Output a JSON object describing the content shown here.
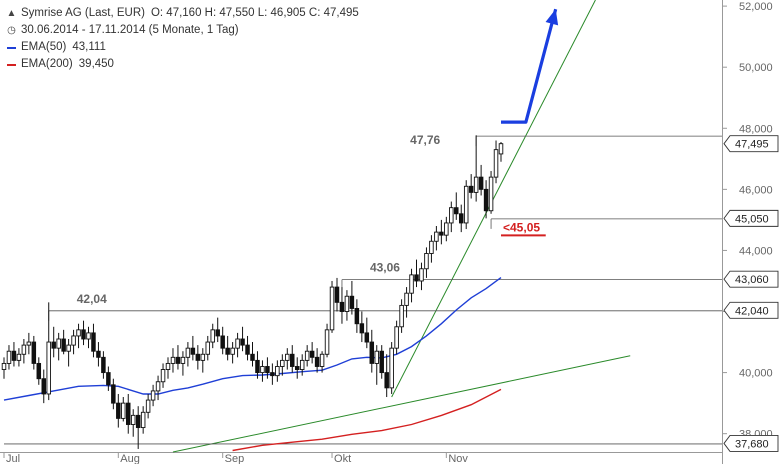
{
  "legend": {
    "title": "Symrise AG (Last, EUR)",
    "ohlc": "O: 47,160  H: 47,550  L: 46,905  C: 47,495",
    "range": "30.06.2014 - 17.11.2014 (5 Monate, 1 Tag)",
    "ema50_label": "EMA(50)",
    "ema50_value": "43,111",
    "ema200_label": "EMA(200)",
    "ema200_value": "39,450",
    "ema50_color": "#1f3fd6",
    "ema200_color": "#d42020"
  },
  "chart_data": {
    "type": "candlestick",
    "title": "Symrise AG (Last, EUR)",
    "ylim": [
      37.4,
      52.2
    ],
    "y_ticks": [
      "38,000",
      "40,000",
      "42,000",
      "44,000",
      "46,000",
      "48,000",
      "50,000",
      "52,000"
    ],
    "y_tick_values": [
      38,
      40,
      42,
      44,
      46,
      48,
      50,
      52
    ],
    "x_labels": [
      {
        "label": "Jul",
        "index": 0
      },
      {
        "label": "Aug",
        "index": 23
      },
      {
        "label": "Sep",
        "index": 44
      },
      {
        "label": "Okt",
        "index": 66
      },
      {
        "label": "Nov",
        "index": 89
      }
    ],
    "x_range": [
      0,
      126
    ],
    "candles": [
      [
        40.1,
        40.5,
        39.8,
        40.3
      ],
      [
        40.3,
        40.9,
        40.1,
        40.7
      ],
      [
        40.7,
        41.0,
        40.2,
        40.4
      ],
      [
        40.4,
        40.8,
        40.2,
        40.6
      ],
      [
        40.6,
        41.1,
        40.3,
        40.9
      ],
      [
        40.9,
        41.3,
        40.6,
        41.0
      ],
      [
        41.0,
        41.2,
        40.1,
        40.3
      ],
      [
        40.3,
        40.5,
        39.6,
        39.8
      ],
      [
        39.8,
        40.1,
        39.0,
        39.3
      ],
      [
        39.3,
        42.3,
        39.1,
        41.0
      ],
      [
        41.0,
        41.5,
        40.5,
        40.8
      ],
      [
        40.8,
        41.3,
        40.4,
        41.1
      ],
      [
        41.1,
        41.4,
        40.6,
        40.7
      ],
      [
        40.7,
        41.1,
        40.2,
        40.9
      ],
      [
        40.9,
        41.4,
        40.6,
        41.2
      ],
      [
        41.2,
        41.6,
        40.8,
        41.4
      ],
      [
        41.4,
        41.7,
        40.9,
        41.1
      ],
      [
        41.1,
        41.5,
        40.8,
        41.3
      ],
      [
        41.3,
        41.6,
        40.5,
        40.7
      ],
      [
        40.7,
        41.0,
        40.2,
        40.5
      ],
      [
        40.5,
        40.7,
        39.8,
        40.0
      ],
      [
        40.0,
        40.2,
        39.4,
        39.6
      ],
      [
        39.6,
        39.8,
        38.8,
        39.0
      ],
      [
        39.0,
        39.3,
        38.2,
        38.5
      ],
      [
        38.5,
        39.2,
        38.4,
        39.0
      ],
      [
        39.0,
        39.3,
        38.0,
        38.3
      ],
      [
        38.3,
        38.8,
        37.9,
        38.6
      ],
      [
        38.6,
        38.9,
        37.5,
        38.2
      ],
      [
        38.2,
        38.9,
        38.0,
        38.7
      ],
      [
        38.7,
        39.3,
        38.5,
        39.1
      ],
      [
        39.1,
        39.6,
        38.9,
        39.4
      ],
      [
        39.4,
        39.9,
        39.1,
        39.7
      ],
      [
        39.7,
        40.3,
        39.5,
        40.1
      ],
      [
        40.1,
        40.5,
        39.8,
        40.3
      ],
      [
        40.3,
        40.8,
        40.0,
        40.5
      ],
      [
        40.5,
        40.9,
        40.1,
        40.3
      ],
      [
        40.3,
        40.7,
        39.9,
        40.5
      ],
      [
        40.5,
        41.0,
        40.2,
        40.8
      ],
      [
        40.8,
        41.2,
        40.4,
        40.6
      ],
      [
        40.6,
        40.9,
        40.1,
        40.4
      ],
      [
        40.4,
        40.8,
        40.0,
        40.6
      ],
      [
        40.6,
        41.2,
        40.4,
        41.0
      ],
      [
        41.0,
        41.6,
        40.8,
        41.4
      ],
      [
        41.4,
        41.8,
        41.0,
        41.2
      ],
      [
        41.2,
        41.5,
        40.6,
        40.8
      ],
      [
        40.8,
        41.2,
        40.4,
        40.6
      ],
      [
        40.6,
        41.0,
        40.3,
        40.8
      ],
      [
        40.8,
        41.3,
        40.5,
        41.1
      ],
      [
        41.1,
        41.5,
        40.7,
        40.9
      ],
      [
        40.9,
        41.2,
        40.4,
        40.6
      ],
      [
        40.6,
        41.0,
        40.2,
        40.4
      ],
      [
        40.4,
        40.7,
        39.8,
        40.0
      ],
      [
        40.0,
        40.4,
        39.7,
        40.2
      ],
      [
        40.2,
        40.5,
        39.8,
        40.0
      ],
      [
        40.0,
        40.3,
        39.6,
        39.9
      ],
      [
        39.9,
        40.4,
        39.7,
        40.2
      ],
      [
        40.2,
        40.6,
        39.9,
        40.4
      ],
      [
        40.4,
        40.8,
        40.1,
        40.6
      ],
      [
        40.6,
        40.9,
        40.0,
        40.2
      ],
      [
        40.2,
        40.5,
        39.8,
        40.1
      ],
      [
        40.1,
        40.6,
        39.9,
        40.4
      ],
      [
        40.4,
        40.9,
        40.2,
        40.7
      ],
      [
        40.7,
        41.0,
        40.3,
        40.5
      ],
      [
        40.5,
        40.8,
        40.0,
        40.2
      ],
      [
        40.2,
        40.7,
        40.0,
        40.6
      ],
      [
        40.6,
        41.6,
        40.5,
        41.4
      ],
      [
        41.4,
        43.0,
        41.3,
        42.8
      ],
      [
        42.8,
        43.1,
        42.0,
        42.3
      ],
      [
        42.3,
        42.8,
        41.6,
        42.0
      ],
      [
        42.0,
        42.7,
        41.7,
        42.5
      ],
      [
        42.5,
        43.0,
        41.9,
        42.1
      ],
      [
        42.1,
        42.4,
        41.3,
        41.6
      ],
      [
        41.6,
        42.0,
        41.0,
        41.3
      ],
      [
        41.3,
        41.8,
        40.8,
        41.0
      ],
      [
        41.0,
        41.4,
        40.0,
        40.3
      ],
      [
        40.3,
        40.9,
        39.6,
        40.7
      ],
      [
        40.7,
        40.9,
        39.8,
        40.0
      ],
      [
        40.0,
        40.6,
        39.2,
        39.5
      ],
      [
        39.5,
        41.0,
        39.3,
        40.8
      ],
      [
        40.8,
        41.7,
        40.6,
        41.5
      ],
      [
        41.5,
        42.4,
        41.3,
        42.2
      ],
      [
        42.2,
        42.8,
        41.8,
        42.6
      ],
      [
        42.6,
        43.4,
        42.3,
        43.2
      ],
      [
        43.2,
        43.7,
        42.8,
        43.0
      ],
      [
        43.0,
        43.6,
        42.7,
        43.4
      ],
      [
        43.4,
        44.1,
        43.1,
        43.9
      ],
      [
        43.9,
        44.5,
        43.6,
        44.3
      ],
      [
        44.3,
        44.8,
        44.0,
        44.6
      ],
      [
        44.6,
        45.0,
        44.2,
        44.5
      ],
      [
        44.5,
        45.1,
        44.3,
        44.9
      ],
      [
        44.9,
        45.6,
        44.6,
        45.4
      ],
      [
        45.4,
        45.9,
        45.0,
        45.2
      ],
      [
        45.2,
        45.5,
        44.6,
        44.9
      ],
      [
        44.9,
        46.3,
        44.7,
        46.1
      ],
      [
        46.1,
        46.5,
        45.7,
        45.9
      ],
      [
        45.9,
        47.77,
        45.6,
        46.4
      ],
      [
        46.4,
        46.8,
        45.8,
        46.0
      ],
      [
        46.0,
        46.3,
        45.05,
        45.3
      ],
      [
        45.3,
        46.6,
        45.2,
        46.4
      ],
      [
        46.4,
        47.6,
        46.2,
        47.3
      ],
      [
        47.16,
        47.55,
        46.905,
        47.495
      ]
    ],
    "ema50": [
      [
        0,
        39.1
      ],
      [
        5,
        39.25
      ],
      [
        10,
        39.4
      ],
      [
        15,
        39.55
      ],
      [
        20,
        39.58
      ],
      [
        23,
        39.55
      ],
      [
        25,
        39.45
      ],
      [
        28,
        39.3
      ],
      [
        31,
        39.3
      ],
      [
        34,
        39.42
      ],
      [
        37,
        39.5
      ],
      [
        40,
        39.62
      ],
      [
        44,
        39.8
      ],
      [
        48,
        39.9
      ],
      [
        52,
        39.92
      ],
      [
        56,
        39.97
      ],
      [
        60,
        40.03
      ],
      [
        64,
        40.08
      ],
      [
        67,
        40.25
      ],
      [
        70,
        40.45
      ],
      [
        73,
        40.5
      ],
      [
        76,
        40.48
      ],
      [
        79,
        40.6
      ],
      [
        82,
        40.85
      ],
      [
        85,
        41.2
      ],
      [
        88,
        41.6
      ],
      [
        91,
        42.05
      ],
      [
        94,
        42.45
      ],
      [
        97,
        42.75
      ],
      [
        100,
        43.11
      ]
    ],
    "ema200": [
      [
        46,
        37.45
      ],
      [
        52,
        37.62
      ],
      [
        58,
        37.72
      ],
      [
        64,
        37.82
      ],
      [
        70,
        37.98
      ],
      [
        76,
        38.1
      ],
      [
        82,
        38.3
      ],
      [
        88,
        38.6
      ],
      [
        94,
        38.95
      ],
      [
        100,
        39.45
      ]
    ],
    "horizontal_levels": [
      {
        "label": "42,04",
        "value": 42.04,
        "start": 9,
        "label_pos": "above"
      },
      {
        "label": "43,06",
        "value": 43.06,
        "start": 68,
        "label_pos": "above"
      },
      {
        "label": "47,76",
        "value": 47.76,
        "start": 95,
        "label_pos": "left"
      },
      {
        "value": 45.05,
        "start": 98
      },
      {
        "value": 37.68,
        "start": 0
      }
    ],
    "price_badges": [
      {
        "label": "47,495",
        "value": 47.495
      },
      {
        "label": "45,050",
        "value": 45.05
      },
      {
        "label": "43,060",
        "value": 43.06
      },
      {
        "label": "42,040",
        "value": 42.04
      },
      {
        "label": "37,680",
        "value": 37.68
      }
    ],
    "annotation_text": "<45,05",
    "annotation_value": 45.05,
    "trendlines": [
      {
        "from": [
          78,
          39.2
        ],
        "to": [
          119,
          52.2
        ],
        "color": "#2a8a2a"
      },
      {
        "from": [
          34,
          37.4
        ],
        "to": [
          126,
          40.55
        ],
        "color": "#2a8a2a"
      }
    ],
    "forecast_arrow": {
      "points": [
        [
          100,
          48.2
        ],
        [
          105,
          48.2
        ],
        [
          111,
          51.9
        ]
      ],
      "color": "#1a3ee0"
    },
    "annotation_color": "#d42020"
  }
}
